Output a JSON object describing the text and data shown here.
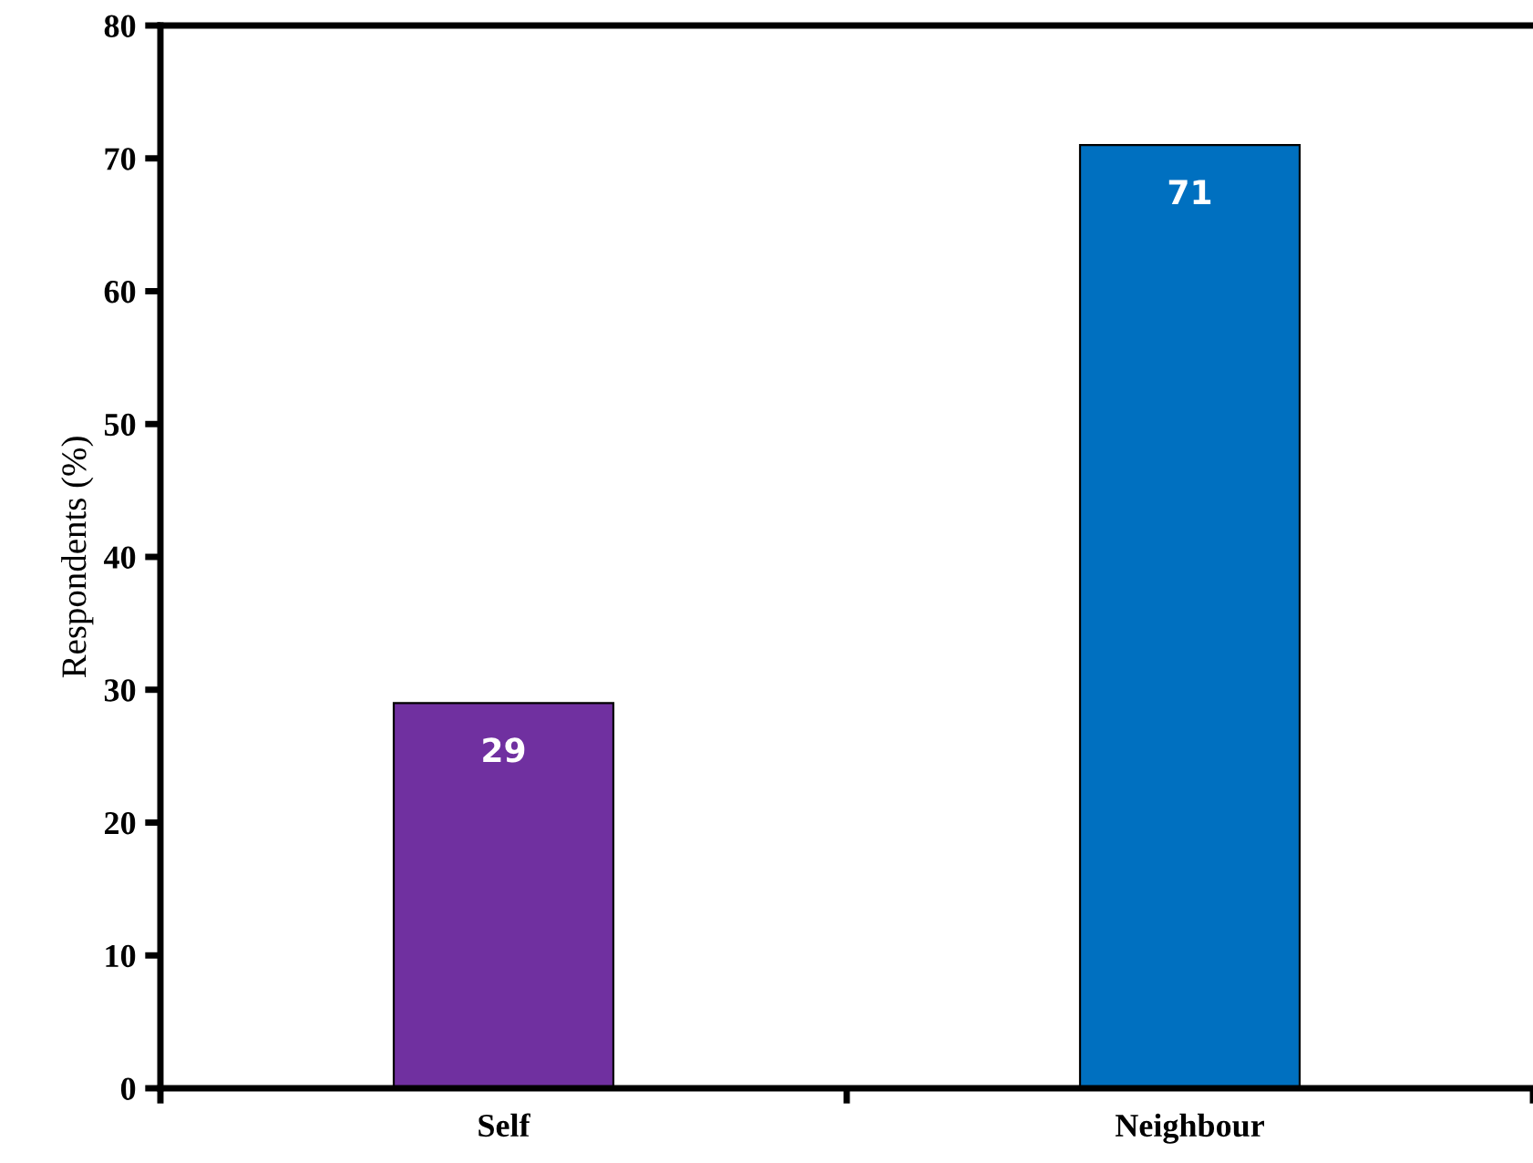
{
  "chart_data": {
    "type": "bar",
    "ylabel": "Respondents (%)",
    "categories": [
      "Self",
      "Neighbour"
    ],
    "values": [
      29,
      71
    ],
    "colors": [
      "#7030a0",
      "#0070c0"
    ],
    "ylim": [
      0,
      80
    ],
    "yticks": [
      0,
      10,
      20,
      30,
      40,
      50,
      60,
      70,
      80
    ],
    "grid": false,
    "data_labels": true
  }
}
